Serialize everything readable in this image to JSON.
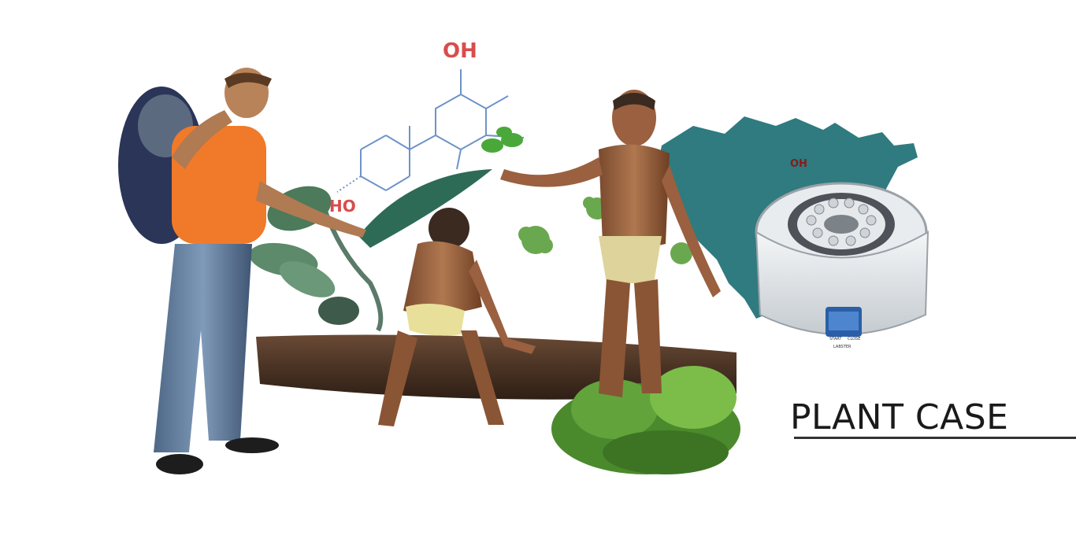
{
  "molecule": {
    "oh_top": "OH",
    "oh_map": "OH",
    "ho_left": "HO"
  },
  "centrifuge": {
    "start_label": "START",
    "close_label": "CLOSE",
    "brand": "LABSTER"
  },
  "heading": {
    "title": "PLANT CASE"
  }
}
